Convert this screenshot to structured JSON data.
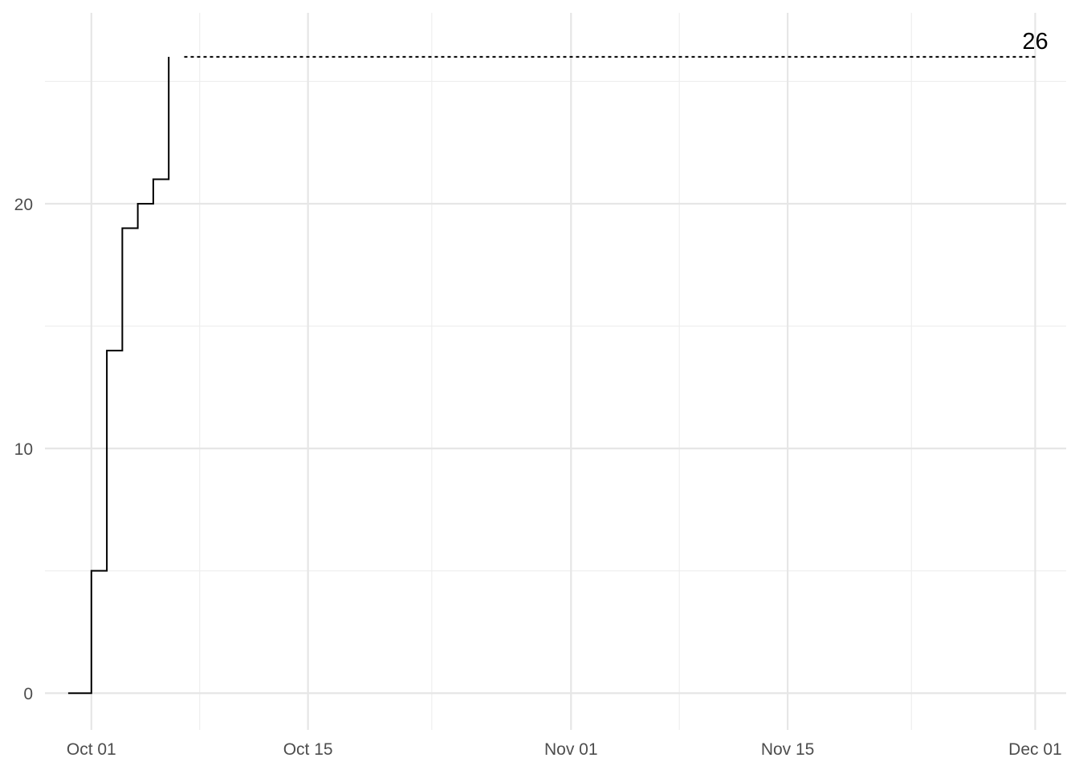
{
  "chart_data": {
    "type": "line",
    "step": true,
    "title": "",
    "xlabel": "",
    "ylabel": "",
    "xlim": [
      "2023-09-28",
      "2023-12-03"
    ],
    "ylim": [
      -1.5,
      27.8
    ],
    "x_ticks": [
      {
        "date": "2023-10-01",
        "label": "Oct 01"
      },
      {
        "date": "2023-10-15",
        "label": "Oct 15"
      },
      {
        "date": "2023-11-01",
        "label": "Nov 01"
      },
      {
        "date": "2023-11-15",
        "label": "Nov 15"
      },
      {
        "date": "2023-12-01",
        "label": "Dec 01"
      }
    ],
    "x_minor_ticks": [
      "2023-10-08",
      "2023-10-23",
      "2023-11-08",
      "2023-11-23"
    ],
    "y_ticks": [
      {
        "value": 0,
        "label": "0"
      },
      {
        "value": 10,
        "label": "10"
      },
      {
        "value": 20,
        "label": "20"
      }
    ],
    "y_minor_ticks": [
      5,
      15,
      25
    ],
    "grid": true,
    "legend": "none",
    "series": [
      {
        "line_style": "solid",
        "color": "#000000",
        "x": [
          "2023-09-30",
          "2023-10-01",
          "2023-10-02",
          "2023-10-03",
          "2023-10-04",
          "2023-10-05",
          "2023-10-06"
        ],
        "values": [
          0,
          5,
          14,
          19,
          20,
          21,
          26
        ]
      },
      {
        "line_style": "dashed",
        "color": "#000000",
        "x": [
          "2023-10-07",
          "2023-12-01"
        ],
        "values": [
          26,
          26
        ]
      }
    ],
    "annotations": [
      {
        "date": "2023-12-01",
        "value": 26,
        "text": "26"
      }
    ]
  }
}
